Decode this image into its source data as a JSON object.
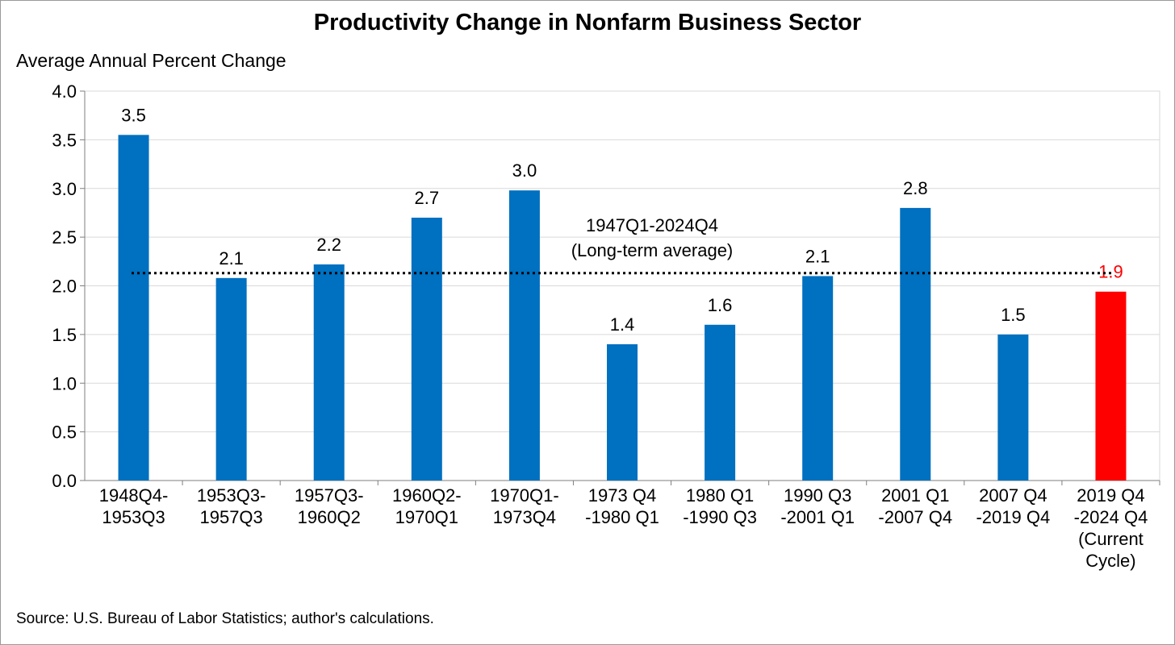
{
  "title": "Productivity Change in Nonfarm Business Sector",
  "y_axis_title": "Average Annual Percent Change",
  "source": "Source:  U.S. Bureau of Labor Statistics; author's calculations.",
  "colors": {
    "bar": "#0070c0",
    "highlight": "#ff0000",
    "grid": "#d9d9d9",
    "axis": "#7f7f7f"
  },
  "chart_data": {
    "type": "bar",
    "title": "Productivity Change in Nonfarm Business Sector",
    "ylabel": "Average Annual Percent Change",
    "xlabel": "",
    "ylim": [
      0,
      4.0
    ],
    "yticks": [
      0.0,
      0.5,
      1.0,
      1.5,
      2.0,
      2.5,
      3.0,
      3.5,
      4.0
    ],
    "grid": true,
    "categories": [
      [
        "1948Q4-",
        "1953Q3"
      ],
      [
        "1953Q3-",
        "1957Q3"
      ],
      [
        "1957Q3-",
        "1960Q2"
      ],
      [
        "1960Q2-",
        "1970Q1"
      ],
      [
        "1970Q1-",
        "1973Q4"
      ],
      [
        "1973 Q4",
        "-1980 Q1"
      ],
      [
        "1980 Q1",
        "-1990 Q3"
      ],
      [
        "1990 Q3",
        "-2001 Q1"
      ],
      [
        "2001 Q1",
        "-2007 Q4"
      ],
      [
        "2007 Q4",
        "-2019 Q4"
      ],
      [
        "2019 Q4",
        "-2024 Q4",
        "(Current",
        "Cycle)"
      ]
    ],
    "values": [
      3.55,
      2.08,
      2.22,
      2.7,
      2.98,
      1.4,
      1.6,
      2.1,
      2.8,
      1.5,
      1.94
    ],
    "data_labels": [
      "3.5",
      "2.1",
      "2.2",
      "2.7",
      "3.0",
      "1.4",
      "1.6",
      "2.1",
      "2.8",
      "1.5",
      "1.9"
    ],
    "highlight_index": 10,
    "reference_line": {
      "value": 2.13,
      "style": "dotted",
      "label": [
        "1947Q1-2024Q4",
        "(Long-term average)"
      ]
    }
  }
}
